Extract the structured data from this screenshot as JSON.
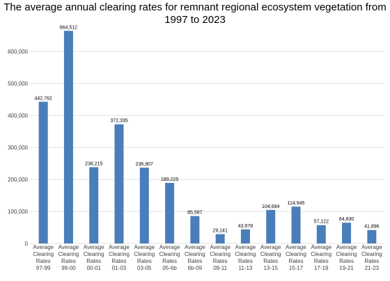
{
  "chart_data": {
    "type": "bar",
    "title_lines": [
      "The average annual clearing rates for remnant regional ecosystem vegetation from",
      "1997 to 2023"
    ],
    "categories": [
      [
        "Average",
        "Clearing",
        "Rates",
        "97-99"
      ],
      [
        "Average",
        "Clearing",
        "Rates",
        "99-00"
      ],
      [
        "Average",
        "Clearing",
        "Rates",
        "00-01"
      ],
      [
        "Average",
        "Clearing",
        "Rates",
        "01-03"
      ],
      [
        "Average",
        "Clearing",
        "Rates",
        "03-05"
      ],
      [
        "Average",
        "Clearing",
        "Rates",
        "05-6b"
      ],
      [
        "Average",
        "Clearing",
        "Rates",
        "6b-09"
      ],
      [
        "Average",
        "Clearing",
        "Rates",
        "09-11"
      ],
      [
        "Average",
        "Clearing",
        "Rates",
        "11-13"
      ],
      [
        "Average",
        "Clearing",
        "Rates",
        "13-15"
      ],
      [
        "Average",
        "Clearing",
        "Rates",
        "15-17"
      ],
      [
        "Average",
        "Clearing",
        "Rates",
        "17-19"
      ],
      [
        "Average",
        "Clearing",
        "Rates",
        "19-21"
      ],
      [
        "Average",
        "Clearing",
        "Rates",
        "21-23"
      ]
    ],
    "values": [
      442762,
      664512,
      238215,
      372335,
      236907,
      189225,
      85587,
      29141,
      43978,
      104684,
      114945,
      57122,
      64830,
      41896
    ],
    "value_labels": [
      "442,762",
      "664,512",
      "238,215",
      "372,335",
      "236,907",
      "189,225",
      "85,587",
      "29,141",
      "43,978",
      "104,684",
      "114,945",
      "57,122",
      "64,830",
      "41,896"
    ],
    "yticks": [
      0,
      100000,
      200000,
      300000,
      400000,
      500000,
      600000
    ],
    "ytick_labels": [
      "0",
      "100,000",
      "200,000",
      "300,000",
      "400,000",
      "500,000",
      "600,000"
    ],
    "ylim": [
      0,
      700000
    ],
    "grid": true,
    "bar_color": "#4a7ebb"
  }
}
